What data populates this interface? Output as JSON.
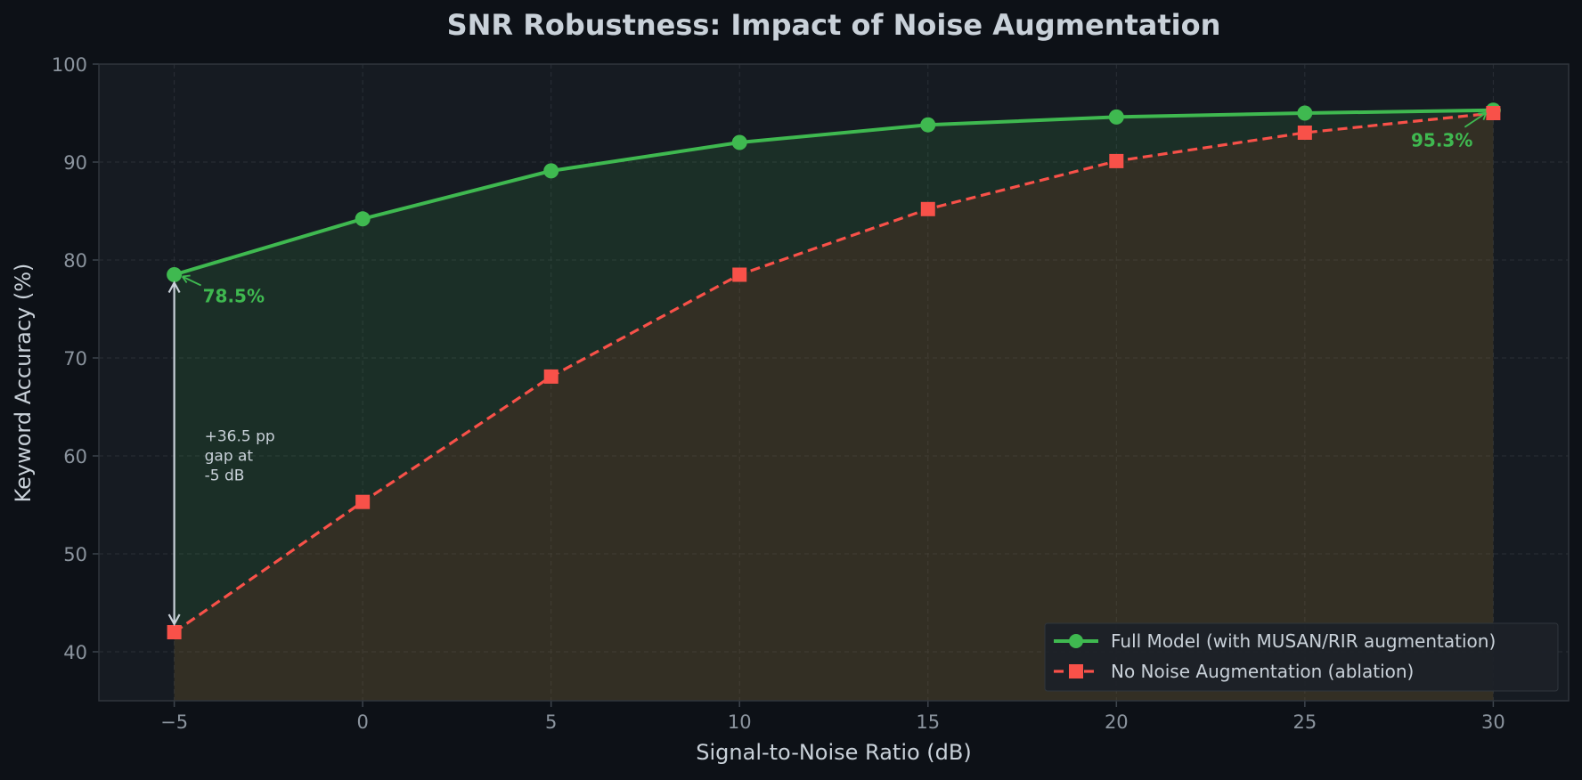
{
  "colors": {
    "background": "#0d1117",
    "plot_background": "#161b22",
    "full_model": "#3fb950",
    "no_noise": "#f85149",
    "text": "#c9d1d9",
    "tick_text": "#8b949e",
    "annotation_arrow": "#c9d1d9"
  },
  "chart_data": {
    "type": "line",
    "title": "SNR Robustness: Impact of Noise Augmentation",
    "xlabel": "Signal-to-Noise Ratio (dB)",
    "ylabel": "Keyword Accuracy (%)",
    "xlim": [
      -7,
      32
    ],
    "ylim": [
      35,
      100
    ],
    "x_ticks": [
      -5,
      0,
      5,
      10,
      15,
      20,
      25,
      30
    ],
    "x_tick_labels": [
      "−5",
      "0",
      "5",
      "10",
      "15",
      "20",
      "25",
      "30"
    ],
    "y_ticks": [
      40,
      50,
      60,
      70,
      80,
      90,
      100
    ],
    "y_tick_labels": [
      "40",
      "50",
      "60",
      "70",
      "80",
      "90",
      "100"
    ],
    "grid": true,
    "legend_position": "bottom-right",
    "x": [
      -5,
      0,
      5,
      10,
      15,
      20,
      25,
      30
    ],
    "series": [
      {
        "name": "Full Model (with MUSAN/RIR augmentation)",
        "values": [
          78.5,
          84.2,
          89.1,
          92.0,
          93.8,
          94.6,
          95.0,
          95.3
        ],
        "marker": "circle",
        "line_style": "solid",
        "color": "#3fb950"
      },
      {
        "name": "No Noise Augmentation (ablation)",
        "values": [
          42.0,
          55.3,
          68.1,
          78.5,
          85.2,
          90.1,
          93.0,
          95.0
        ],
        "marker": "square",
        "line_style": "dashed",
        "color": "#f85149"
      }
    ],
    "annotations": [
      {
        "text": "78.5%",
        "x": -5,
        "y": 78.5,
        "color": "#3fb950"
      },
      {
        "text": "95.3%",
        "x": 30,
        "y": 95.3,
        "color": "#3fb950"
      },
      {
        "lines": [
          "+36.5 pp",
          "gap at",
          "-5 dB"
        ],
        "x": -5,
        "y_from": 42.0,
        "y_to": 78.5
      }
    ]
  }
}
